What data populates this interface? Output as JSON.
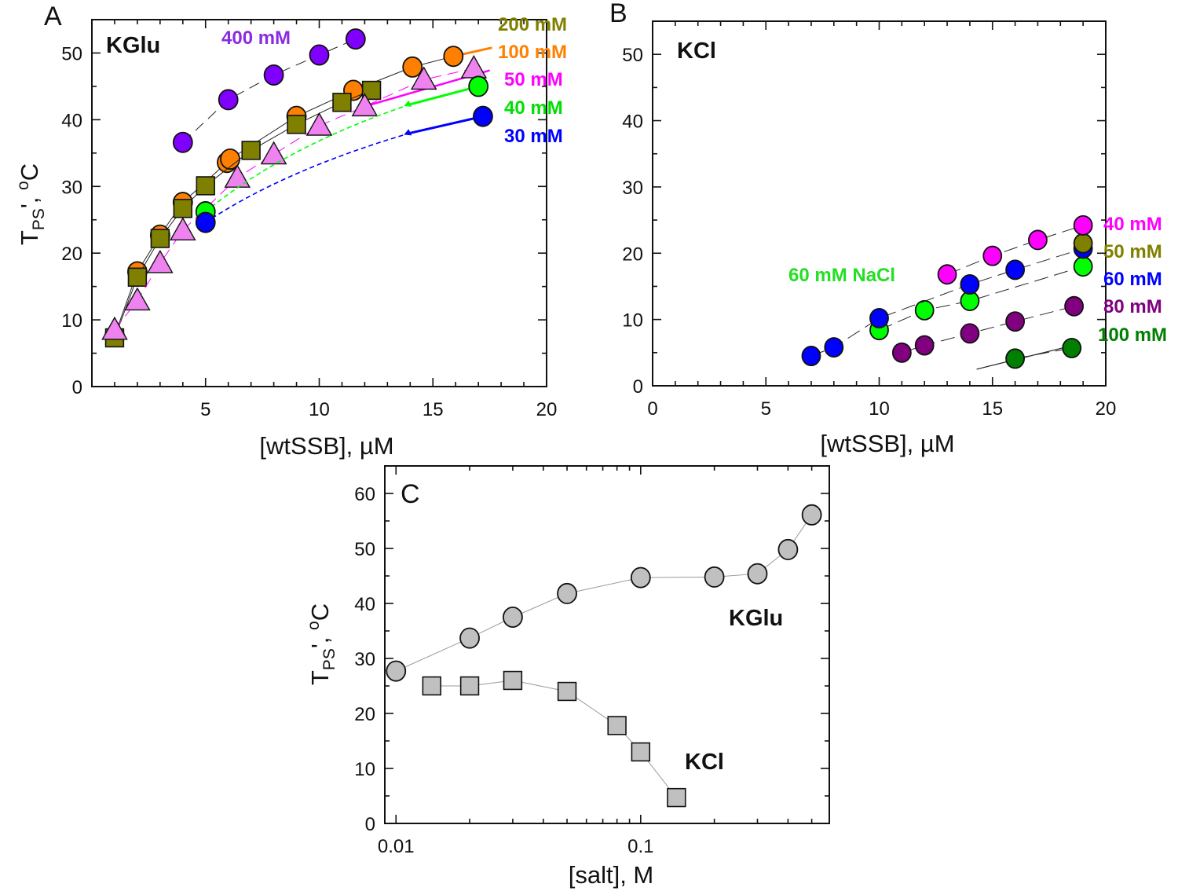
{
  "chart_data": [
    {
      "panel": "A",
      "type": "scatter",
      "annotation": "KGlu",
      "xlabel": "[wtSSB], µM",
      "ylabel_parts": [
        "T",
        "PS",
        "', ",
        "o",
        "C"
      ],
      "xlim": [
        0,
        20
      ],
      "ylim": [
        0,
        55
      ],
      "xticks": [
        5,
        10,
        15,
        20
      ],
      "yticks": [
        0,
        10,
        20,
        30,
        40,
        50
      ],
      "grid": false,
      "series": [
        {
          "name": "100 mM",
          "marker": "circle",
          "color": "#FF8000",
          "label_color": "#FF8000",
          "x": [
            1,
            2,
            3,
            4,
            5.94,
            6.08,
            9,
            11.5,
            14.1,
            15.9
          ],
          "y": [
            7.6,
            17.2,
            22.7,
            27.6,
            33.6,
            34.1,
            40.5,
            44.4,
            47.9,
            49.5
          ]
        },
        {
          "name": "200 mM",
          "marker": "square",
          "color": "#7F7F00",
          "label_color": "#808000",
          "x": [
            1,
            2,
            3,
            4,
            5,
            7,
            9,
            11,
            12.3
          ],
          "y": [
            7.3,
            16.4,
            22.2,
            26.7,
            30.1,
            35.4,
            39.3,
            42.6,
            44.4
          ]
        },
        {
          "name": "50 mM",
          "marker": "triangle",
          "color": "#EE82EE",
          "label_color": "#FF00FF",
          "x": [
            1,
            2,
            3,
            4,
            6.4,
            8,
            10,
            12,
            14.6,
            16.8
          ],
          "y": [
            8.5,
            12.9,
            18.5,
            23.4,
            31.3,
            34.8,
            39.1,
            42,
            46,
            47.7
          ]
        },
        {
          "name": "40 mM",
          "marker": "circle",
          "color": "#00FF00",
          "label_color": "#00E000",
          "x": [
            5,
            17
          ],
          "y": [
            26.2,
            45
          ]
        },
        {
          "name": "30 mM",
          "marker": "circle",
          "color": "#0000FF",
          "label_color": "#0000FF",
          "x": [
            5,
            17.2
          ],
          "y": [
            24.6,
            40.5
          ]
        },
        {
          "name": "400 mM",
          "marker": "circle",
          "color": "#8000FF",
          "label_color": "#8A2BE2",
          "x": [
            4,
            6,
            8,
            10,
            11.6
          ],
          "y": [
            36.6,
            43,
            46.7,
            49.7,
            52.1
          ]
        }
      ]
    },
    {
      "panel": "B",
      "type": "scatter",
      "annotation": "KCl",
      "xlabel": "[wtSSB], µM",
      "xlim": [
        0,
        20
      ],
      "ylim": [
        0,
        55
      ],
      "xticks": [
        0,
        5,
        10,
        15,
        20
      ],
      "yticks": [
        0,
        10,
        20,
        30,
        40,
        50
      ],
      "grid": false,
      "series": [
        {
          "name": "60 mM NaCl",
          "marker": "circle",
          "color": "#00FF00",
          "label_color": "#22E022",
          "x": [
            10,
            12,
            14,
            19
          ],
          "y": [
            8.4,
            11.4,
            12.8,
            18
          ]
        },
        {
          "name": "60 mM",
          "marker": "circle",
          "color": "#0000FF",
          "label_color": "#0000FF",
          "x": [
            7,
            8,
            10,
            14,
            16,
            19
          ],
          "y": [
            4.5,
            5.8,
            10.2,
            15.3,
            17.5,
            20.7
          ]
        },
        {
          "name": "50 mM",
          "marker": "circle",
          "color": "#7F7F00",
          "label_color": "#808000",
          "x": [
            19
          ],
          "y": [
            21.5
          ]
        },
        {
          "name": "40 mM",
          "marker": "circle",
          "color": "#FF00FF",
          "label_color": "#FF00FF",
          "x": [
            13,
            15,
            17,
            19
          ],
          "y": [
            16.8,
            19.6,
            22,
            24.2
          ]
        },
        {
          "name": "80 mM",
          "marker": "circle",
          "color": "#800080",
          "label_color": "#800080",
          "x": [
            11,
            12,
            14,
            16,
            18.6
          ],
          "y": [
            5,
            6.1,
            7.9,
            9.7,
            12
          ]
        },
        {
          "name": "100 mM",
          "marker": "circle",
          "color": "#007F00",
          "label_color": "#008000",
          "x": [
            16,
            18.5
          ],
          "y": [
            4.1,
            5.7
          ]
        }
      ]
    },
    {
      "panel": "C",
      "type": "scatter",
      "xlabel": "[salt], M",
      "ylabel_parts": [
        "T",
        "PS",
        "', ",
        "o",
        "C"
      ],
      "xscale": "log",
      "xlim": [
        0.009,
        0.59
      ],
      "ylim": [
        0,
        65
      ],
      "xticks": [
        0.01,
        0.1
      ],
      "xtick_labels": [
        "0.01",
        "0.1"
      ],
      "yticks": [
        0,
        10,
        20,
        30,
        40,
        50,
        60
      ],
      "grid": false,
      "series": [
        {
          "name": "KGlu",
          "marker": "circle",
          "color": "#C0C0C0",
          "x": [
            0.01,
            0.02,
            0.03,
            0.05,
            0.1,
            0.2,
            0.3,
            0.4,
            0.5
          ],
          "y": [
            27.7,
            33.7,
            37.5,
            41.8,
            44.7,
            44.8,
            45.4,
            49.8,
            56.1
          ]
        },
        {
          "name": "KCl",
          "marker": "square",
          "color": "#C0C0C0",
          "x": [
            0.014,
            0.02,
            0.03,
            0.05,
            0.08,
            0.1,
            0.14
          ],
          "y": [
            25,
            25,
            26,
            24,
            17.8,
            13,
            4.7
          ]
        }
      ]
    }
  ]
}
